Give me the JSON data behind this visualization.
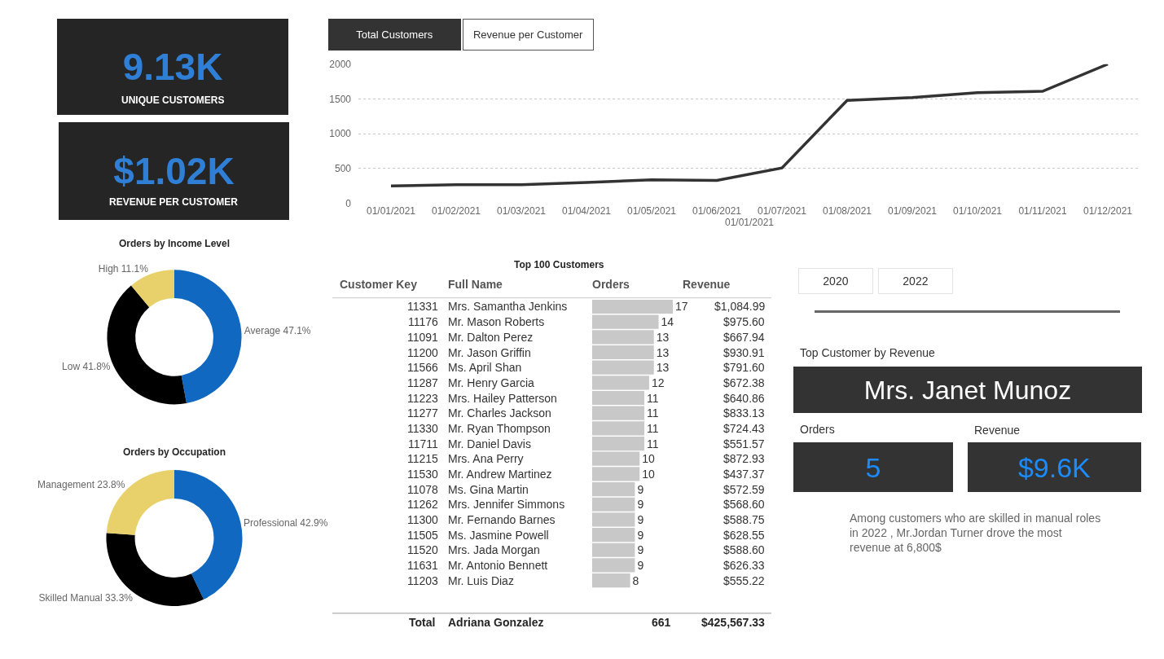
{
  "chart_data": [
    {
      "type": "other",
      "annotations": [
        "9.13K",
        "UNIQUE CUSTOMERS"
      ]
    },
    {
      "type": "other",
      "annotations": [
        "$1.02K",
        "REVENUE PER CUSTOMER"
      ]
    },
    {
      "type": "line",
      "categories": [
        "01/01/2021",
        "01/02/2021",
        "01/03/2021",
        "01/04/2021",
        "01/05/2021",
        "01/06/2021",
        "01/07/2021",
        "01/08/2021",
        "01/09/2021",
        "01/10/2021",
        "01/11/2021",
        "01/12/2021"
      ],
      "xlabel": "01/01/2021",
      "series": [
        {
          "color": "#333333",
          "values": [
            250,
            270,
            270,
            300,
            340,
            330,
            510,
            1480,
            1520,
            1590,
            1610,
            2000
          ]
        }
      ],
      "ylim": [
        0,
        2000
      ],
      "yticks": [
        0,
        500,
        1000,
        1500,
        2000
      ],
      "grid": "y",
      "marker": "none",
      "line_style": "solid",
      "annotations": [
        "Total Customers",
        "Revenue per Customer"
      ]
    },
    {
      "type": "donut",
      "title": "Orders by Income Level",
      "categories": [
        "Average",
        "Low",
        "High"
      ],
      "values": [
        47.1,
        41.8,
        11.1
      ],
      "value_labels": [
        "47.1%",
        "41.8%",
        "11.1%"
      ],
      "colors": [
        "#1068c0",
        "#000000",
        "#e8d06a"
      ]
    },
    {
      "type": "donut",
      "title": "Orders by Occupation",
      "categories": [
        "Professional",
        "Skilled Manual",
        "Management"
      ],
      "values": [
        42.9,
        33.3,
        23.8
      ],
      "value_labels": [
        "42.9%",
        "33.3%",
        "23.8%"
      ],
      "colors": [
        "#1068c0",
        "#000000",
        "#e8d06a"
      ]
    },
    {
      "type": "bar",
      "orientation": "horizontal",
      "title": "Top 100 Customers",
      "ylabel": "Full Name",
      "data_labels": true,
      "categories": [
        "Mrs. Samantha Jenkins",
        "Mr. Mason Roberts",
        "Mr. Dalton Perez",
        "Mr. Jason Griffin",
        "Ms. April Shan",
        "Mr. Henry Garcia",
        "Mrs. Hailey Patterson",
        "Mr. Charles Jackson",
        "Mr. Ryan Thompson",
        "Mr. Daniel Davis",
        "Mrs. Ana Perry",
        "Mr. Andrew Martinez",
        "Ms. Gina Martin",
        "Mrs. Jennifer Simmons",
        "Mr. Fernando Barnes",
        "Ms. Jasmine Powell",
        "Mrs. Jada Morgan",
        "Mr. Antonio Bennett",
        "Mr. Luis Diaz"
      ],
      "series": [
        {
          "name": "Orders",
          "color": "#c8c8c8",
          "values": [
            17,
            14,
            13,
            13,
            13,
            12,
            11,
            11,
            11,
            11,
            10,
            10,
            9,
            9,
            9,
            9,
            9,
            9,
            8
          ]
        }
      ],
      "annotations": [
        "Customer Key",
        "Revenue",
        "Total",
        "Adriana Gonzalez",
        "661",
        "$425,567.33",
        "11331",
        "11176",
        "11091",
        "11200",
        "11566",
        "11287",
        "11223",
        "11277",
        "11330",
        "11711",
        "11215",
        "11530",
        "11078",
        "11262",
        "11300",
        "11505",
        "11520",
        "11631",
        "11203",
        "$1,084.99",
        "$975.60",
        "$667.94",
        "$930.91",
        "$791.60",
        "$672.38",
        "$640.86",
        "$833.13",
        "$724.43",
        "$551.57",
        "$872.93",
        "$437.37",
        "$572.59",
        "$568.60",
        "$588.75",
        "$628.55",
        "$588.60",
        "$626.33",
        "$555.22"
      ]
    },
    {
      "type": "other",
      "annotations": [
        "2020",
        "2022",
        "Top Customer by Revenue",
        "Mrs. Janet Munoz",
        "Orders",
        "5",
        "Revenue",
        "$9.6K",
        "Among customers who are skilled in manual roles in 2022 , Mr.Jordan Turner drove the most revenue at 6,800$"
      ]
    }
  ]
}
